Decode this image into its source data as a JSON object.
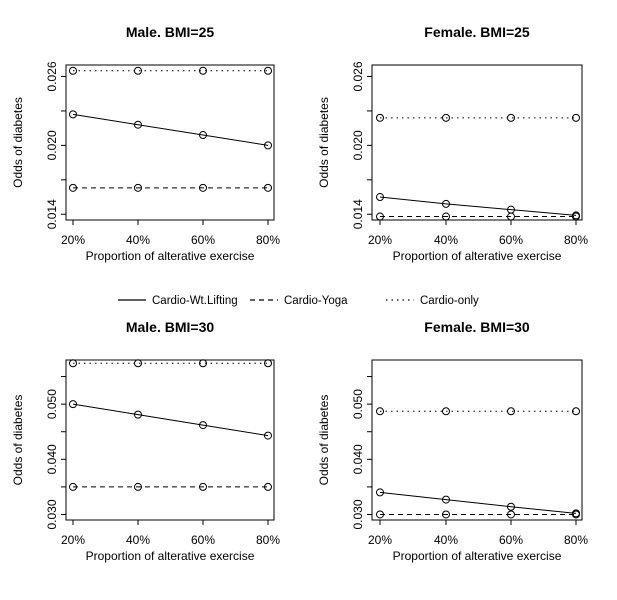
{
  "legend": {
    "placement": "center-between-rows",
    "items": [
      {
        "label": "Cardio-Wt.Lifting",
        "style": "solid"
      },
      {
        "label": "Cardio-Yoga",
        "style": "dashed"
      },
      {
        "label": "Cardio-only",
        "style": "dotted"
      }
    ]
  },
  "chart_data": [
    {
      "type": "line",
      "title": "Male. BMI=25",
      "xlabel": "Proportion of alterative exercise",
      "ylabel": "Odds of diabetes",
      "categories": [
        "20%",
        "40%",
        "60%",
        "80%"
      ],
      "yticks": [
        "0.014",
        "0.020",
        "0.026"
      ],
      "yticks_values": [
        0.014,
        0.02,
        0.026
      ],
      "ylim": [
        0.0135,
        0.027
      ],
      "series": [
        {
          "name": "Cardio-Wt.Lifting",
          "style": "solid",
          "values": [
            0.0227,
            0.0218,
            0.0209,
            0.02
          ]
        },
        {
          "name": "Cardio-Yoga",
          "style": "dashed",
          "values": [
            0.0163,
            0.0163,
            0.0163,
            0.0163
          ]
        },
        {
          "name": "Cardio-only",
          "style": "dotted",
          "values": [
            0.0265,
            0.0265,
            0.0265,
            0.0265
          ]
        }
      ]
    },
    {
      "type": "line",
      "title": "Female. BMI=25",
      "xlabel": "Proportion of alterative exercise",
      "ylabel": "Odds of diabetes",
      "categories": [
        "20%",
        "40%",
        "60%",
        "80%"
      ],
      "yticks": [
        "0.014",
        "0.020",
        "0.026"
      ],
      "yticks_values": [
        0.014,
        0.02,
        0.026
      ],
      "ylim": [
        0.0135,
        0.027
      ],
      "series": [
        {
          "name": "Cardio-Wt.Lifting",
          "style": "solid",
          "values": [
            0.0155,
            0.0149,
            0.0144,
            0.0139
          ]
        },
        {
          "name": "Cardio-Yoga",
          "style": "dashed",
          "values": [
            0.0138,
            0.0138,
            0.0138,
            0.0138
          ]
        },
        {
          "name": "Cardio-only",
          "style": "dotted",
          "values": [
            0.0224,
            0.0224,
            0.0224,
            0.0224
          ]
        }
      ]
    },
    {
      "type": "line",
      "title": "Male. BMI=30",
      "xlabel": "Proportion of alterative exercise",
      "ylabel": "Odds of diabetes",
      "categories": [
        "20%",
        "40%",
        "60%",
        "80%"
      ],
      "yticks": [
        "0.030",
        "0.040",
        "0.050"
      ],
      "yticks_values": [
        0.03,
        0.04,
        0.05
      ],
      "ylim": [
        0.029,
        0.058
      ],
      "series": [
        {
          "name": "Cardio-Wt.Lifting",
          "style": "solid",
          "values": [
            0.05,
            0.0481,
            0.0462,
            0.0443
          ]
        },
        {
          "name": "Cardio-Yoga",
          "style": "dashed",
          "values": [
            0.035,
            0.035,
            0.035,
            0.035
          ]
        },
        {
          "name": "Cardio-only",
          "style": "dotted",
          "values": [
            0.0574,
            0.0574,
            0.0574,
            0.0574
          ]
        }
      ]
    },
    {
      "type": "line",
      "title": "Female. BMI=30",
      "xlabel": "Proportion of alterative exercise",
      "ylabel": "Odds of diabetes",
      "categories": [
        "20%",
        "40%",
        "60%",
        "80%"
      ],
      "yticks": [
        "0.030",
        "0.040",
        "0.050"
      ],
      "yticks_values": [
        0.03,
        0.04,
        0.05
      ],
      "ylim": [
        0.029,
        0.058
      ],
      "series": [
        {
          "name": "Cardio-Wt.Lifting",
          "style": "solid",
          "values": [
            0.034,
            0.0327,
            0.0314,
            0.0302
          ]
        },
        {
          "name": "Cardio-Yoga",
          "style": "dashed",
          "values": [
            0.03,
            0.03,
            0.03,
            0.03
          ]
        },
        {
          "name": "Cardio-only",
          "style": "dotted",
          "values": [
            0.0487,
            0.0487,
            0.0487,
            0.0487
          ]
        }
      ]
    }
  ]
}
